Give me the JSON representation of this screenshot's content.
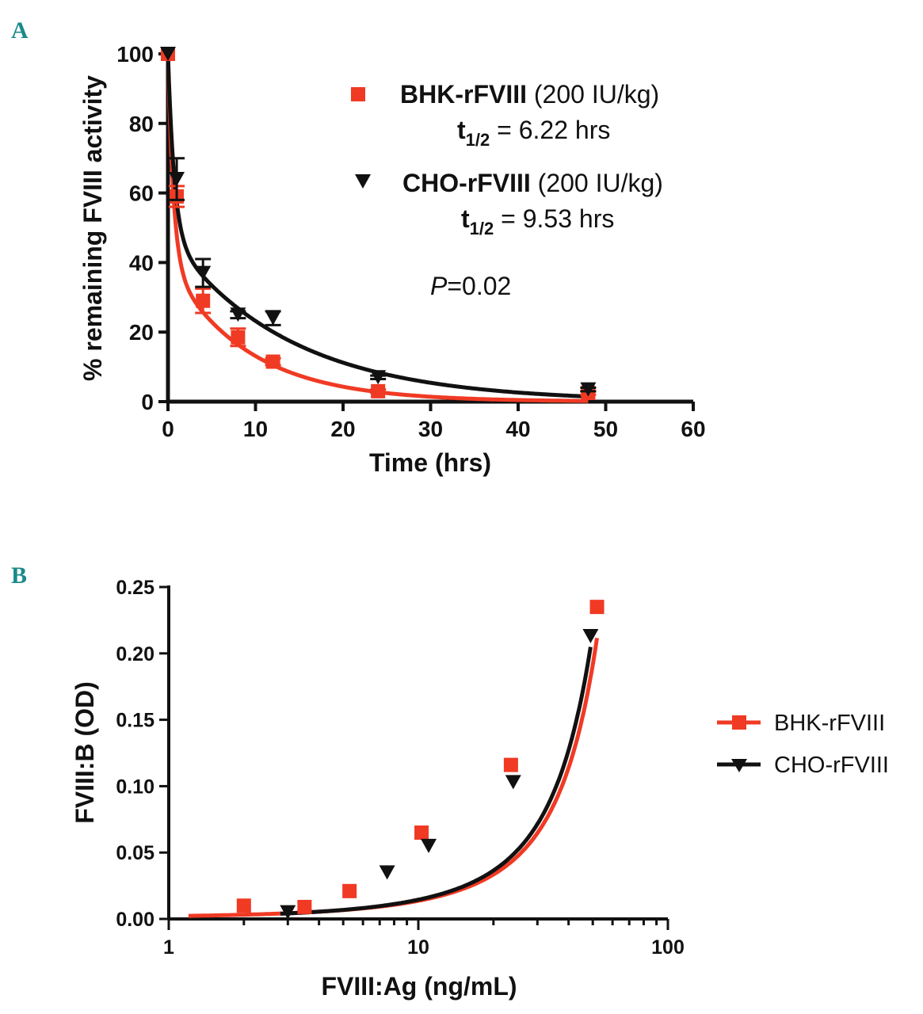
{
  "colors": {
    "bhk": "#f03a24",
    "cho": "#111111",
    "panel_label": "#1a8a8a"
  },
  "chart_data": [
    {
      "panel": "A",
      "type": "scatter",
      "xlabel": "Time (hrs)",
      "ylabel": "% remaining FVIII activity",
      "xlim": [
        0,
        60
      ],
      "ylim": [
        0,
        100
      ],
      "xticks": [
        "0",
        "10",
        "20",
        "30",
        "40",
        "50",
        "60"
      ],
      "yticks": [
        "0",
        "20",
        "40",
        "60",
        "80",
        "100"
      ],
      "grid": false,
      "series": [
        {
          "name": "BHK-rFVIII",
          "marker": "square",
          "x": [
            0,
            1,
            4,
            8,
            12,
            24,
            48
          ],
          "y": [
            100,
            59,
            29,
            18.5,
            11.5,
            3,
            2.5
          ],
          "err": [
            0,
            3,
            3.5,
            2.5,
            1,
            0.5,
            0.5
          ]
        },
        {
          "name": "CHO-rFVIII",
          "marker": "triangle-down",
          "x": [
            0,
            1,
            4,
            8,
            12,
            24,
            48
          ],
          "y": [
            100,
            64,
            37,
            25,
            24,
            7,
            3.5
          ],
          "err": [
            0,
            6,
            4,
            1,
            2,
            0.5,
            0.5
          ]
        }
      ],
      "annotations": [
        {
          "bold": "BHK-rFVIII",
          "text": " (200 IU/kg)"
        },
        {
          "t_main": "t",
          "t_sub": "1/2",
          "text": " = 6.22 hrs"
        },
        {
          "bold": "CHO-rFVIII",
          "text": " (200 IU/kg)"
        },
        {
          "t_main": "t",
          "t_sub": "1/2",
          "text": " = 9.53 hrs"
        },
        {
          "italic": "P",
          "text": "=0.02"
        }
      ]
    },
    {
      "panel": "B",
      "type": "scatter",
      "xlabel": "FVIII:Ag (ng/mL)",
      "ylabel": "FVIII:B (OD)",
      "xscale": "log",
      "xlim": [
        1,
        100
      ],
      "ylim": [
        0,
        0.25
      ],
      "xticks": [
        "1",
        "10",
        "100"
      ],
      "yticks": [
        "0.00",
        "0.05",
        "0.10",
        "0.15",
        "0.20",
        "0.25"
      ],
      "legend": "right",
      "series": [
        {
          "name": "BHK-rFVIII",
          "marker": "square",
          "x": [
            2,
            3.5,
            5.3,
            10.3,
            23.5,
            52
          ],
          "y": [
            0.01,
            0.009,
            0.021,
            0.065,
            0.116,
            0.235
          ]
        },
        {
          "name": "CHO-rFVIII",
          "marker": "triangle-down",
          "x": [
            3,
            7.5,
            11,
            24,
            49
          ],
          "y": [
            0.005,
            0.035,
            0.055,
            0.103,
            0.213
          ]
        }
      ]
    }
  ]
}
